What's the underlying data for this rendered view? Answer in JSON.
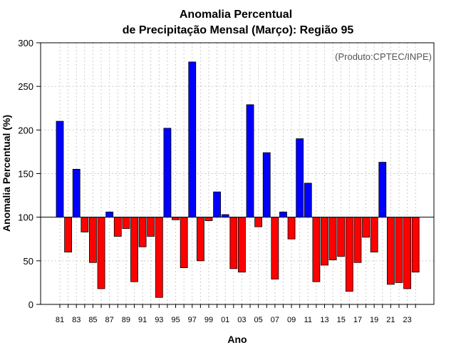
{
  "chart_data": {
    "type": "bar",
    "title_line1": "Anomalia Percentual",
    "title_line2": "de Precipitação Mensal (Março): Região 95",
    "xlabel": "Ano",
    "ylabel": "Anomalia Percentual (%)",
    "source": "(Produto:CPTEC/INPE)",
    "baseline": 100,
    "ylim": [
      0,
      300
    ],
    "yticks": [
      "0",
      "50",
      "100",
      "150",
      "200",
      "250",
      "300"
    ],
    "grid": true,
    "colors": {
      "above": "#0000ff",
      "below": "#ff0000",
      "edge": "#000000",
      "grid": "#cccccc"
    },
    "categories": [
      "81",
      "82",
      "83",
      "84",
      "85",
      "86",
      "87",
      "88",
      "89",
      "90",
      "91",
      "92",
      "93",
      "94",
      "95",
      "96",
      "97",
      "98",
      "99",
      "00",
      "01",
      "02",
      "03",
      "04",
      "05",
      "06",
      "07",
      "08",
      "09",
      "10",
      "11",
      "12",
      "13",
      "14",
      "15",
      "16",
      "17",
      "18",
      "19",
      "20",
      "21",
      "22",
      "23",
      "24"
    ],
    "xtick_labels": [
      "81",
      "83",
      "85",
      "87",
      "89",
      "91",
      "93",
      "95",
      "97",
      "99",
      "01",
      "03",
      "05",
      "07",
      "09",
      "11",
      "13",
      "15",
      "17",
      "19",
      "21",
      "23"
    ],
    "values": [
      210,
      60,
      155,
      83,
      48,
      18,
      106,
      78,
      87,
      26,
      66,
      78,
      8,
      202,
      97,
      42,
      278,
      50,
      96,
      129,
      103,
      41,
      37,
      229,
      89,
      174,
      29,
      106,
      75,
      190,
      139,
      26,
      45,
      51,
      55,
      15,
      48,
      77,
      60,
      163,
      23,
      25,
      18,
      37
    ]
  }
}
